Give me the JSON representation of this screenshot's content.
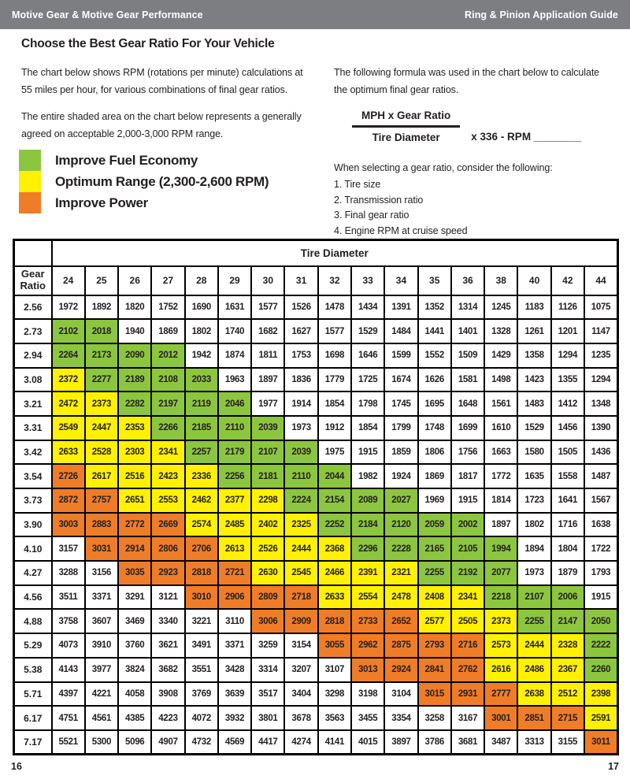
{
  "header": {
    "left": "Motive Gear & Motive Gear Performance",
    "right": "Ring & Pinion Application Guide"
  },
  "intro": {
    "title": "Choose the Best Gear Ratio For Your Vehicle",
    "para1": "The chart below shows RPM (rotations per minute) calculations at 55 miles per hour, for various combinations of final gear ratios.",
    "para2": "The entire shaded area on the chart below represents a generally agreed on acceptable 2,000-3,000 RPM range."
  },
  "legend": {
    "items": [
      {
        "name": "improve-fuel-economy",
        "label": "Improve Fuel Economy",
        "color": "#8cc63f"
      },
      {
        "name": "optimum-range",
        "label": "Optimum Range (2,300-2,600 RPM)",
        "color": "#fff100"
      },
      {
        "name": "improve-power",
        "label": "Improve Power",
        "color": "#ef7d28"
      }
    ]
  },
  "formula": {
    "intro": "The following formula was used in the chart below to calculate the optimum final gear ratios.",
    "numerator": "MPH x Gear Ratio",
    "denominator": "Tire Diameter",
    "suffix": "x 336 - RPM ________",
    "consider_title": "When selecting a gear ratio, consider the following:",
    "consider_items": [
      "1. Tire size",
      "2. Transmission ratio",
      "3. Final gear ratio",
      "4. Engine RPM at cruise speed"
    ]
  },
  "footer": {
    "page_left": "16",
    "page_right": "17"
  },
  "chart_data": {
    "type": "table",
    "title": "Tire Diameter",
    "corner_label": "Gear Ratio",
    "x_label": "Tire Diameter (inches)",
    "y_label": "Gear Ratio",
    "value_unit": "RPM at 55 MPH",
    "tire_diameters": [
      24,
      25,
      26,
      27,
      28,
      29,
      30,
      31,
      32,
      33,
      34,
      35,
      36,
      38,
      40,
      42,
      44
    ],
    "color_key": {
      "w": "#ffffff",
      "g": "#8cc63f",
      "y": "#fff100",
      "o": "#ef7d28"
    },
    "color_meaning": {
      "g": "Improve Fuel Economy",
      "y": "Optimum Range (2,300-2,600 RPM)",
      "o": "Improve Power",
      "w": "outside 2,000-3,000 RPM shading"
    },
    "rows": [
      {
        "ratio": "2.56",
        "values": [
          1972,
          1892,
          1820,
          1752,
          1690,
          1631,
          1577,
          1526,
          1478,
          1434,
          1391,
          1352,
          1314,
          1245,
          1183,
          1126,
          1075
        ],
        "colors": "wwwwwwwwwwwwwwwww"
      },
      {
        "ratio": "2.73",
        "values": [
          2102,
          2018,
          1940,
          1869,
          1802,
          1740,
          1682,
          1627,
          1577,
          1529,
          1484,
          1441,
          1401,
          1328,
          1261,
          1201,
          1147
        ],
        "colors": "ggwwwwwwwwwwwwwww"
      },
      {
        "ratio": "2.94",
        "values": [
          2264,
          2173,
          2090,
          2012,
          1942,
          1874,
          1811,
          1753,
          1698,
          1646,
          1599,
          1552,
          1509,
          1429,
          1358,
          1294,
          1235
        ],
        "colors": "ggggwwwwwwwwwwwww"
      },
      {
        "ratio": "3.08",
        "values": [
          2372,
          2277,
          2189,
          2108,
          2033,
          1963,
          1897,
          1836,
          1779,
          1725,
          1674,
          1626,
          1581,
          1498,
          1423,
          1355,
          1294
        ],
        "colors": "yggggwwwwwwwwwwww"
      },
      {
        "ratio": "3.21",
        "values": [
          2472,
          2373,
          2282,
          2197,
          2119,
          2046,
          1977,
          1914,
          1854,
          1798,
          1745,
          1695,
          1648,
          1561,
          1483,
          1412,
          1348
        ],
        "colors": "yyggggwwwwwwwwwww"
      },
      {
        "ratio": "3.31",
        "values": [
          2549,
          2447,
          2353,
          2266,
          2185,
          2110,
          2039,
          1973,
          1912,
          1854,
          1799,
          1748,
          1699,
          1610,
          1529,
          1456,
          1390
        ],
        "colors": "yyyggggwwwwwwwwww"
      },
      {
        "ratio": "3.42",
        "values": [
          2633,
          2528,
          2303,
          2341,
          2257,
          2179,
          2107,
          2039,
          1975,
          1915,
          1859,
          1806,
          1756,
          1663,
          1580,
          1505,
          1436
        ],
        "colors": "yyyyggggwwwwwwwww"
      },
      {
        "ratio": "3.54",
        "values": [
          2726,
          2617,
          2516,
          2423,
          2336,
          2256,
          2181,
          2110,
          2044,
          1982,
          1924,
          1869,
          1817,
          1772,
          1635,
          1558,
          1487
        ],
        "colors": "oyyyyggggwwwwwwww"
      },
      {
        "ratio": "3.73",
        "values": [
          2872,
          2757,
          2651,
          2553,
          2462,
          2377,
          2298,
          2224,
          2154,
          2089,
          2027,
          1969,
          1915,
          1814,
          1723,
          1641,
          1567
        ],
        "colors": "ooyyyyyggggwwwwww"
      },
      {
        "ratio": "3.90",
        "values": [
          3003,
          2883,
          2772,
          2669,
          2574,
          2485,
          2402,
          2325,
          2252,
          2184,
          2120,
          2059,
          2002,
          1897,
          1802,
          1716,
          1638
        ],
        "colors": "ooooyyyygggggwwww"
      },
      {
        "ratio": "4.10",
        "values": [
          3157,
          3031,
          2914,
          2806,
          2706,
          2613,
          2526,
          2444,
          2368,
          2296,
          2228,
          2165,
          2105,
          1994,
          1894,
          1804,
          1722
        ],
        "colors": "wooooyyyygggggwww"
      },
      {
        "ratio": "4.27",
        "values": [
          3288,
          3156,
          3035,
          2923,
          2818,
          2721,
          2630,
          2545,
          2466,
          2391,
          2321,
          2255,
          2192,
          2077,
          1973,
          1879,
          1793
        ],
        "colors": "wwooooyyyyygggwww"
      },
      {
        "ratio": "4.56",
        "values": [
          3511,
          3371,
          3291,
          3121,
          3010,
          2906,
          2809,
          2718,
          2633,
          2554,
          2478,
          2408,
          2341,
          2218,
          2107,
          2006,
          1915
        ],
        "colors": "wwwwooooyyyyygggw"
      },
      {
        "ratio": "4.88",
        "values": [
          3758,
          3607,
          3469,
          3340,
          3221,
          3110,
          3006,
          2909,
          2818,
          2733,
          2652,
          2577,
          2505,
          2373,
          2255,
          2147,
          2050
        ],
        "colors": "wwwwwwoooooyyyggg"
      },
      {
        "ratio": "5.29",
        "values": [
          4073,
          3910,
          3760,
          3621,
          3491,
          3371,
          3259,
          3154,
          3055,
          2962,
          2875,
          2793,
          2716,
          2573,
          2444,
          2328,
          2222
        ],
        "colors": "wwwwwwwwoooooyyyg"
      },
      {
        "ratio": "5.38",
        "values": [
          4143,
          3977,
          3824,
          3682,
          3551,
          3428,
          3314,
          3207,
          3107,
          3013,
          2924,
          2841,
          2762,
          2616,
          2486,
          2367,
          2260
        ],
        "colors": "wwwwwwwwwooooyyyg"
      },
      {
        "ratio": "5.71",
        "values": [
          4397,
          4221,
          4058,
          3908,
          3769,
          3639,
          3517,
          3404,
          3298,
          3198,
          3104,
          3015,
          2931,
          2777,
          2638,
          2512,
          2398
        ],
        "colors": "wwwwwwwwwwwoooyyy"
      },
      {
        "ratio": "6.17",
        "values": [
          4751,
          4561,
          4385,
          4223,
          4072,
          3932,
          3801,
          3678,
          3563,
          3455,
          3354,
          3258,
          3167,
          3001,
          2851,
          2715,
          2591
        ],
        "colors": "wwwwwwwwwwwwwoooy"
      },
      {
        "ratio": "7.17",
        "values": [
          5521,
          5300,
          5096,
          4907,
          4732,
          4569,
          4417,
          4274,
          4141,
          4015,
          3897,
          3786,
          3681,
          3487,
          3313,
          3155,
          3011
        ],
        "colors": "wwwwwwwwwwwwwwwwo"
      }
    ]
  }
}
